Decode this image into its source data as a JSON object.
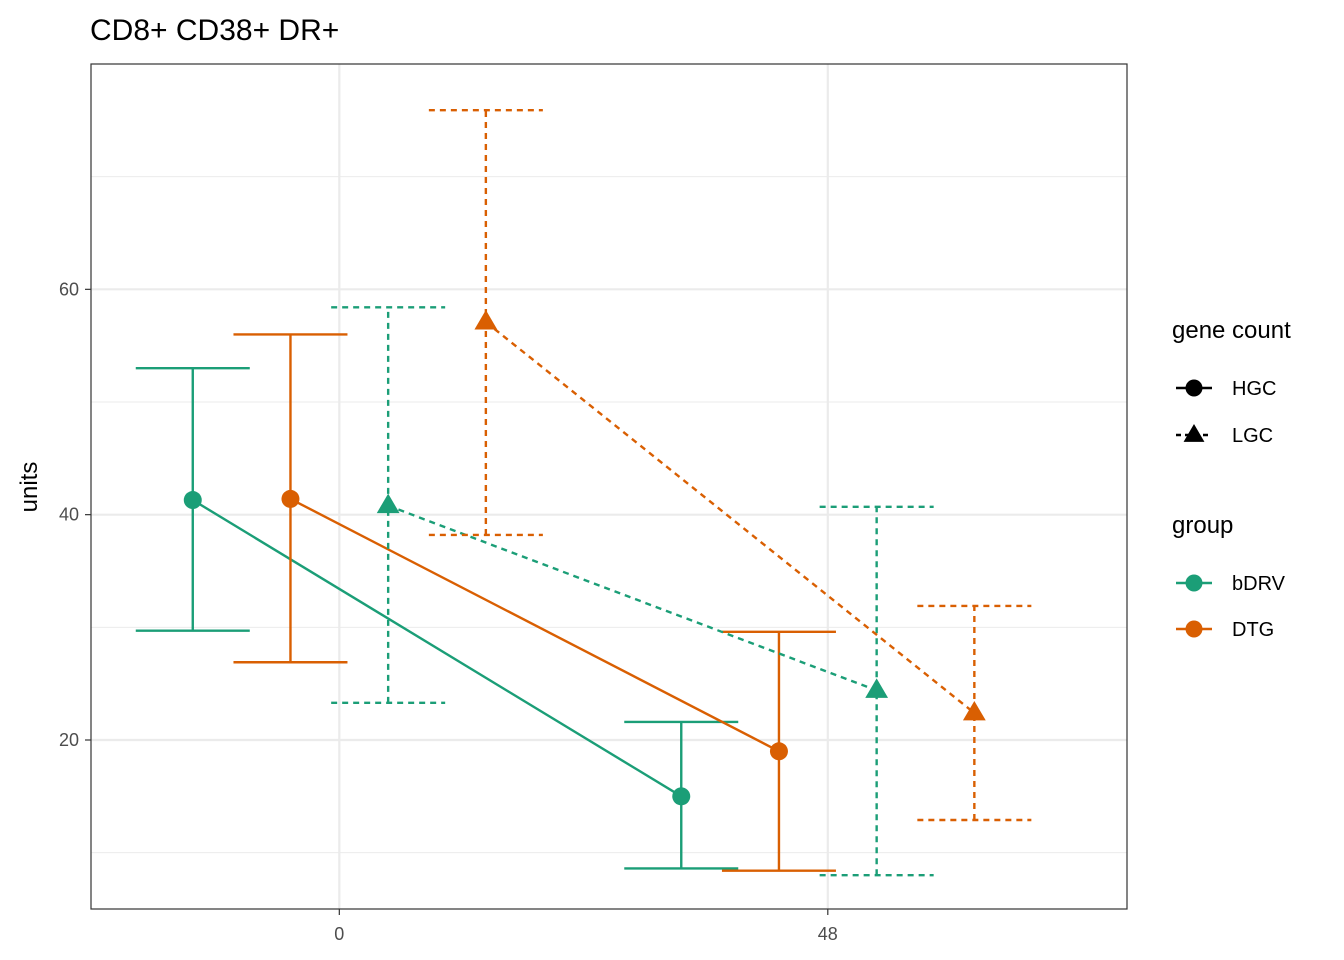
{
  "chart_data": {
    "type": "line",
    "title": "CD8+ CD38+ DR+",
    "xlabel": "",
    "ylabel": "units",
    "x_ticks": [
      0,
      48
    ],
    "y_ticks": [
      20,
      40,
      60
    ],
    "xlim": [
      -24.4,
      77.4
    ],
    "ylim": [
      5,
      80
    ],
    "grid": true,
    "legend_placement": "right",
    "colors": {
      "bDRV": "#1b9e77",
      "DTG": "#d95f02"
    },
    "legends": [
      {
        "title": "gene count",
        "entries": [
          {
            "label": "HGC",
            "shape": "circle",
            "linetype": "solid"
          },
          {
            "label": "LGC",
            "shape": "triangle",
            "linetype": "dotted"
          }
        ]
      },
      {
        "title": "group",
        "entries": [
          {
            "label": "bDRV",
            "color": "#1b9e77"
          },
          {
            "label": "DTG",
            "color": "#d95f02"
          }
        ]
      }
    ],
    "series": [
      {
        "group": "bDRV",
        "gene_count": "HGC",
        "points": [
          {
            "x": -14.4,
            "y": 41.3,
            "lo": 29.7,
            "hi": 53.0
          },
          {
            "x": 33.6,
            "y": 15.0,
            "lo": 8.6,
            "hi": 21.6
          }
        ]
      },
      {
        "group": "DTG",
        "gene_count": "HGC",
        "points": [
          {
            "x": -4.8,
            "y": 41.4,
            "lo": 26.9,
            "hi": 56.0
          },
          {
            "x": 43.2,
            "y": 19.0,
            "lo": 8.4,
            "hi": 29.6
          }
        ]
      },
      {
        "group": "bDRV",
        "gene_count": "LGC",
        "points": [
          {
            "x": 4.8,
            "y": 40.8,
            "lo": 23.3,
            "hi": 58.4
          },
          {
            "x": 52.8,
            "y": 24.4,
            "lo": 8.0,
            "hi": 40.7
          }
        ]
      },
      {
        "group": "DTG",
        "gene_count": "LGC",
        "points": [
          {
            "x": 14.4,
            "y": 57.1,
            "lo": 38.2,
            "hi": 75.9
          },
          {
            "x": 62.4,
            "y": 22.4,
            "lo": 12.9,
            "hi": 31.9
          }
        ]
      }
    ]
  }
}
